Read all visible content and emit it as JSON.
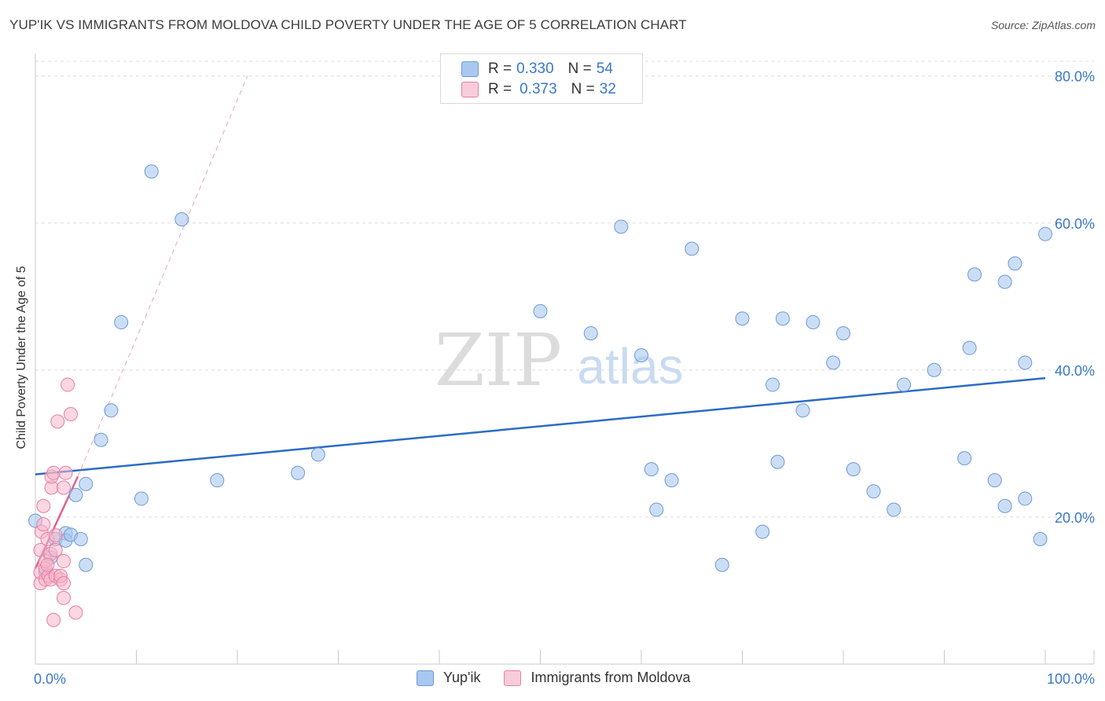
{
  "header": {
    "title": "YUP'IK VS IMMIGRANTS FROM MOLDOVA CHILD POVERTY UNDER THE AGE OF 5 CORRELATION CHART",
    "source": "Source: ZipAtlas.com"
  },
  "watermark": {
    "zip": "ZIP",
    "atlas": "atlas"
  },
  "legend_top": {
    "rows": [
      {
        "r_label": "R =",
        "r_value": "0.330",
        "n_label": "N =",
        "n_value": "54"
      },
      {
        "r_label": "R =",
        "r_value": "0.373",
        "n_label": "N =",
        "n_value": "32"
      }
    ]
  },
  "colors": {
    "blue_fill": "#a9c8ef",
    "blue_stroke": "#6e9ad6",
    "blue_line": "#2b6cc4",
    "pink_fill": "#f5b6cb",
    "pink_stroke": "#e87ea2",
    "pink_line": "#e0608d",
    "axis_text": "#3a78c9",
    "grid": "#dcdcdc"
  },
  "chart_data": {
    "type": "scatter",
    "title": "YUP'IK VS IMMIGRANTS FROM MOLDOVA CHILD POVERTY UNDER THE AGE OF 5 CORRELATION CHART",
    "xlabel": "",
    "ylabel": "Child Poverty Under the Age of 5",
    "xlim": [
      0,
      100
    ],
    "ylim": [
      0,
      82
    ],
    "x_tick_labels": [
      {
        "value": 0,
        "label": "0.0%"
      },
      {
        "value": 100,
        "label": "100.0%"
      }
    ],
    "y_tick_labels": [
      {
        "value": 20,
        "label": "20.0%"
      },
      {
        "value": 40,
        "label": "40.0%"
      },
      {
        "value": 60,
        "label": "60.0%"
      },
      {
        "value": 80,
        "label": "80.0%"
      }
    ],
    "series": [
      {
        "name": "Yup'ik",
        "color": "blue",
        "R": 0.33,
        "N": 54,
        "trend": {
          "x0": 0,
          "y0": 25.8,
          "x1": 100,
          "y1": 38.9
        },
        "points": [
          [
            0,
            19.5
          ],
          [
            1,
            12.5
          ],
          [
            1.5,
            14.5
          ],
          [
            2,
            17.0
          ],
          [
            3,
            17.8
          ],
          [
            3,
            16.8
          ],
          [
            3.5,
            17.6
          ],
          [
            4,
            23.0
          ],
          [
            4.5,
            17.0
          ],
          [
            5,
            13.5
          ],
          [
            5,
            24.5
          ],
          [
            6.5,
            30.5
          ],
          [
            7.5,
            34.5
          ],
          [
            8.5,
            46.5
          ],
          [
            10.5,
            22.5
          ],
          [
            11.5,
            67.0
          ],
          [
            14.5,
            60.5
          ],
          [
            18,
            25.0
          ],
          [
            26,
            26.0
          ],
          [
            28,
            28.5
          ],
          [
            50,
            48.0
          ],
          [
            55,
            45.0
          ],
          [
            58,
            59.5
          ],
          [
            60,
            42.0
          ],
          [
            61,
            26.5
          ],
          [
            61.5,
            21.0
          ],
          [
            63,
            25.0
          ],
          [
            65,
            56.5
          ],
          [
            68,
            13.5
          ],
          [
            70,
            47.0
          ],
          [
            72,
            18.0
          ],
          [
            73,
            38.0
          ],
          [
            73.5,
            27.5
          ],
          [
            74,
            47.0
          ],
          [
            76,
            34.5
          ],
          [
            77,
            46.5
          ],
          [
            79,
            41.0
          ],
          [
            80,
            45.0
          ],
          [
            81,
            26.5
          ],
          [
            83,
            23.5
          ],
          [
            85,
            21.0
          ],
          [
            86,
            38.0
          ],
          [
            89,
            40.0
          ],
          [
            92,
            28.0
          ],
          [
            92.5,
            43.0
          ],
          [
            93,
            53.0
          ],
          [
            95,
            25.0
          ],
          [
            96,
            52.0
          ],
          [
            96,
            21.5
          ],
          [
            97,
            54.5
          ],
          [
            98,
            41.0
          ],
          [
            98,
            22.5
          ],
          [
            99.5,
            17.0
          ],
          [
            100,
            58.5
          ]
        ]
      },
      {
        "name": "Immigrants from Moldova",
        "color": "pink",
        "R": 0.373,
        "N": 32,
        "trend": {
          "x0": 0,
          "y0": 13.0,
          "x1": 4.2,
          "y1": 25.5
        },
        "trend_dashed": {
          "x0": 4.2,
          "y0": 25.5,
          "x1": 21,
          "y1": 80.0
        },
        "points": [
          [
            0.5,
            11.0
          ],
          [
            0.5,
            12.5
          ],
          [
            0.5,
            15.5
          ],
          [
            0.6,
            18.0
          ],
          [
            0.8,
            21.5
          ],
          [
            0.8,
            19.0
          ],
          [
            1,
            11.5
          ],
          [
            1,
            13.0
          ],
          [
            1,
            14.0
          ],
          [
            1.2,
            17.0
          ],
          [
            1.3,
            12.0
          ],
          [
            1.5,
            15.0
          ],
          [
            1.5,
            11.5
          ],
          [
            1.6,
            24.0
          ],
          [
            1.6,
            25.5
          ],
          [
            1.8,
            26.0
          ],
          [
            1.8,
            6.0
          ],
          [
            2,
            12.0
          ],
          [
            2,
            17.5
          ],
          [
            2,
            15.5
          ],
          [
            2.2,
            33.0
          ],
          [
            2.5,
            11.5
          ],
          [
            2.5,
            12.0
          ],
          [
            2.8,
            24.0
          ],
          [
            2.8,
            14.0
          ],
          [
            2.8,
            9.0
          ],
          [
            2.8,
            11.0
          ],
          [
            3.0,
            26.0
          ],
          [
            3.2,
            38.0
          ],
          [
            3.5,
            34.0
          ],
          [
            4.0,
            7.0
          ],
          [
            1.2,
            13.5
          ]
        ]
      }
    ]
  },
  "bottom_legend": {
    "items": [
      {
        "label": "Yup'ik"
      },
      {
        "label": "Immigrants from Moldova"
      }
    ]
  }
}
